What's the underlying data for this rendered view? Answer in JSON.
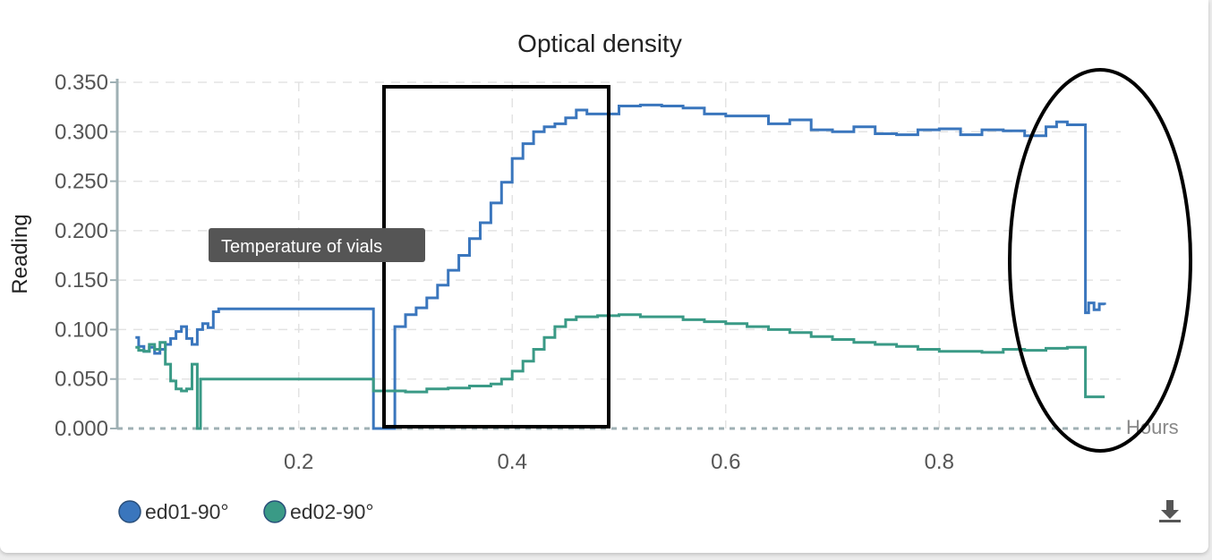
{
  "chart_data": {
    "type": "line",
    "title": "Optical density",
    "xlabel": "Hours",
    "ylabel": "Reading",
    "xlim": [
      0.03,
      0.97
    ],
    "ylim": [
      0,
      0.35
    ],
    "xticks": [
      0.2,
      0.4,
      0.6,
      0.8
    ],
    "yticks": [
      0,
      0.05,
      0.1,
      0.15,
      0.2,
      0.25,
      0.3,
      0.35
    ],
    "ytick_labels": [
      "0.000",
      "0.050",
      "0.100",
      "0.150",
      "0.200",
      "0.250",
      "0.300",
      "0.350"
    ],
    "xtick_labels": [
      "0.2",
      "0.4",
      "0.6",
      "0.8"
    ],
    "grid": true,
    "legend_position": "bottom-left",
    "series": [
      {
        "name": "ed01-90°",
        "color": "#3a76bd",
        "step": true,
        "points": [
          [
            0.047,
            0.092
          ],
          [
            0.05,
            0.083
          ],
          [
            0.055,
            0.078
          ],
          [
            0.06,
            0.082
          ],
          [
            0.065,
            0.076
          ],
          [
            0.07,
            0.08
          ],
          [
            0.075,
            0.085
          ],
          [
            0.08,
            0.091
          ],
          [
            0.085,
            0.098
          ],
          [
            0.09,
            0.103
          ],
          [
            0.095,
            0.091
          ],
          [
            0.1,
            0.085
          ],
          [
            0.105,
            0.1
          ],
          [
            0.11,
            0.106
          ],
          [
            0.115,
            0.102
          ],
          [
            0.12,
            0.118
          ],
          [
            0.125,
            0.121
          ],
          [
            0.27,
            0.121
          ],
          [
            0.27,
            0.0
          ],
          [
            0.29,
            0.0
          ],
          [
            0.29,
            0.103
          ],
          [
            0.3,
            0.115
          ],
          [
            0.31,
            0.122
          ],
          [
            0.32,
            0.132
          ],
          [
            0.33,
            0.145
          ],
          [
            0.34,
            0.16
          ],
          [
            0.35,
            0.175
          ],
          [
            0.36,
            0.192
          ],
          [
            0.37,
            0.208
          ],
          [
            0.38,
            0.228
          ],
          [
            0.39,
            0.249
          ],
          [
            0.4,
            0.273
          ],
          [
            0.41,
            0.288
          ],
          [
            0.42,
            0.3
          ],
          [
            0.43,
            0.305
          ],
          [
            0.44,
            0.308
          ],
          [
            0.45,
            0.314
          ],
          [
            0.46,
            0.322
          ],
          [
            0.47,
            0.318
          ],
          [
            0.48,
            0.318
          ],
          [
            0.5,
            0.326
          ],
          [
            0.52,
            0.327
          ],
          [
            0.54,
            0.326
          ],
          [
            0.56,
            0.324
          ],
          [
            0.58,
            0.318
          ],
          [
            0.6,
            0.316
          ],
          [
            0.62,
            0.316
          ],
          [
            0.64,
            0.308
          ],
          [
            0.66,
            0.312
          ],
          [
            0.68,
            0.302
          ],
          [
            0.7,
            0.3
          ],
          [
            0.72,
            0.305
          ],
          [
            0.74,
            0.298
          ],
          [
            0.76,
            0.297
          ],
          [
            0.78,
            0.302
          ],
          [
            0.8,
            0.303
          ],
          [
            0.82,
            0.297
          ],
          [
            0.84,
            0.302
          ],
          [
            0.86,
            0.301
          ],
          [
            0.88,
            0.296
          ],
          [
            0.9,
            0.305
          ],
          [
            0.91,
            0.31
          ],
          [
            0.92,
            0.307
          ],
          [
            0.937,
            0.307
          ],
          [
            0.937,
            0.117
          ],
          [
            0.94,
            0.127
          ],
          [
            0.945,
            0.12
          ],
          [
            0.95,
            0.126
          ],
          [
            0.955,
            0.125
          ]
        ]
      },
      {
        "name": "ed02-90°",
        "color": "#3a9a86",
        "step": true,
        "points": [
          [
            0.047,
            0.082
          ],
          [
            0.05,
            0.079
          ],
          [
            0.055,
            0.078
          ],
          [
            0.06,
            0.085
          ],
          [
            0.065,
            0.08
          ],
          [
            0.07,
            0.087
          ],
          [
            0.075,
            0.065
          ],
          [
            0.08,
            0.048
          ],
          [
            0.085,
            0.04
          ],
          [
            0.09,
            0.038
          ],
          [
            0.095,
            0.04
          ],
          [
            0.1,
            0.04
          ],
          [
            0.1,
            0.065
          ],
          [
            0.105,
            0.0
          ],
          [
            0.108,
            0.05
          ],
          [
            0.27,
            0.05
          ],
          [
            0.27,
            0.038
          ],
          [
            0.3,
            0.037
          ],
          [
            0.32,
            0.04
          ],
          [
            0.34,
            0.041
          ],
          [
            0.36,
            0.043
          ],
          [
            0.38,
            0.045
          ],
          [
            0.39,
            0.05
          ],
          [
            0.4,
            0.058
          ],
          [
            0.41,
            0.068
          ],
          [
            0.42,
            0.08
          ],
          [
            0.43,
            0.092
          ],
          [
            0.44,
            0.103
          ],
          [
            0.45,
            0.11
          ],
          [
            0.46,
            0.113
          ],
          [
            0.48,
            0.114
          ],
          [
            0.5,
            0.115
          ],
          [
            0.52,
            0.113
          ],
          [
            0.54,
            0.113
          ],
          [
            0.56,
            0.11
          ],
          [
            0.58,
            0.108
          ],
          [
            0.6,
            0.106
          ],
          [
            0.62,
            0.103
          ],
          [
            0.64,
            0.1
          ],
          [
            0.66,
            0.097
          ],
          [
            0.68,
            0.093
          ],
          [
            0.7,
            0.09
          ],
          [
            0.72,
            0.087
          ],
          [
            0.74,
            0.085
          ],
          [
            0.76,
            0.083
          ],
          [
            0.78,
            0.08
          ],
          [
            0.8,
            0.078
          ],
          [
            0.82,
            0.078
          ],
          [
            0.84,
            0.077
          ],
          [
            0.86,
            0.08
          ],
          [
            0.88,
            0.079
          ],
          [
            0.9,
            0.081
          ],
          [
            0.92,
            0.082
          ],
          [
            0.937,
            0.082
          ],
          [
            0.937,
            0.032
          ],
          [
            0.95,
            0.032
          ],
          [
            0.955,
            0.032
          ]
        ]
      }
    ],
    "tooltip": "Temperature of vials"
  },
  "colors": {
    "grid": "#e3e3e3",
    "axis": "#9fb0b4",
    "annotation": "#000000",
    "tooltip_bg": "#555555"
  },
  "toolbar": {
    "download_icon": "download-icon"
  }
}
